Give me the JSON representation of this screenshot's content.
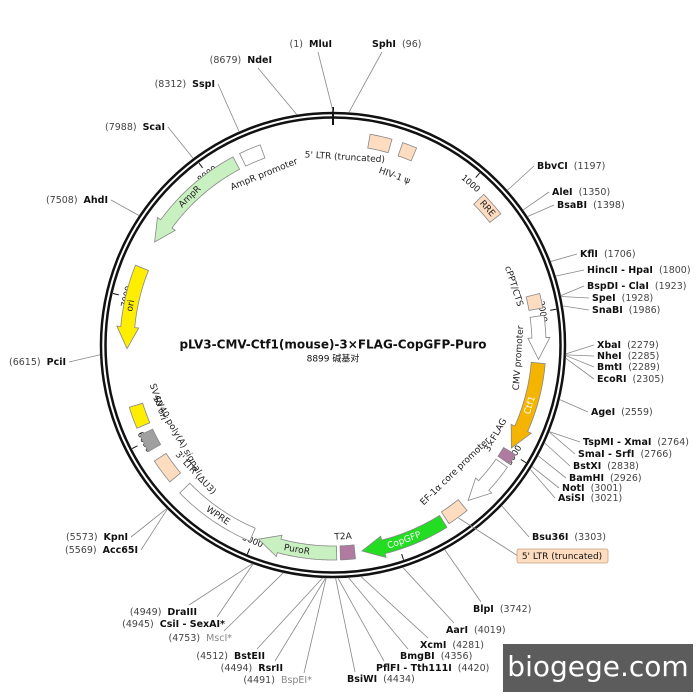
{
  "title": "pLV3-CMV-Ctf1(mouse)-3×FLAG-CopGFP-Puro",
  "subtitle": "8899 碱基对",
  "scale_ticks": [
    "1000",
    "2000",
    "3000",
    "4000",
    "5000",
    "6000",
    "7000",
    "8000"
  ],
  "features": [
    {
      "label": "5' LTR (truncated)"
    },
    {
      "label": "HIV-1 ψ"
    },
    {
      "label": "RRE"
    },
    {
      "label": "cPPT/CTS"
    },
    {
      "label": "CMV promoter"
    },
    {
      "label": "Ctf1"
    },
    {
      "label": "3×FLAG"
    },
    {
      "label": "EF-1α core promoter"
    },
    {
      "label": "5' LTR (truncated)"
    },
    {
      "label": "CopGFP"
    },
    {
      "label": "T2A"
    },
    {
      "label": "PuroR"
    },
    {
      "label": "WPRE"
    },
    {
      "label": "3' LTR (ΔU3)"
    },
    {
      "label": "SV40 poly(A) signal"
    },
    {
      "label": "SV40 ori"
    },
    {
      "label": "ori"
    },
    {
      "label": "AmpR"
    },
    {
      "label": "AmpR promoter"
    }
  ],
  "enzymes": [
    {
      "name": "SphI",
      "site": "(96)"
    },
    {
      "name": "BbvCI",
      "site": "(1197)"
    },
    {
      "name": "AleI",
      "site": "(1350)"
    },
    {
      "name": "BsaBI",
      "site": "(1398)"
    },
    {
      "name": "KflI",
      "site": "(1706)"
    },
    {
      "name": "HincII - HpaI",
      "site": "(1800)"
    },
    {
      "name": "BspDI - ClaI",
      "site": "(1923)"
    },
    {
      "name": "SpeI",
      "site": "(1928)"
    },
    {
      "name": "SnaBI",
      "site": "(1986)"
    },
    {
      "name": "XbaI",
      "site": "(2279)"
    },
    {
      "name": "NheI",
      "site": "(2285)"
    },
    {
      "name": "BmtI",
      "site": "(2289)"
    },
    {
      "name": "EcoRI",
      "site": "(2305)"
    },
    {
      "name": "AgeI",
      "site": "(2559)"
    },
    {
      "name": "TspMI - XmaI",
      "site": "(2764)"
    },
    {
      "name": "SmaI - SrfI",
      "site": "(2766)"
    },
    {
      "name": "BstXI",
      "site": "(2838)"
    },
    {
      "name": "BamHI",
      "site": "(2926)"
    },
    {
      "name": "NotI",
      "site": "(3001)"
    },
    {
      "name": "AsiSI",
      "site": "(3021)"
    },
    {
      "name": "Bsu36I",
      "site": "(3303)"
    },
    {
      "name": "BlpI",
      "site": "(3742)"
    },
    {
      "name": "AarI",
      "site": "(4019)"
    },
    {
      "name": "XcmI",
      "site": "(4281)"
    },
    {
      "name": "BmgBI",
      "site": "(4356)"
    },
    {
      "name": "PflFI - Tth111I",
      "site": "(4420)"
    },
    {
      "name": "BsiWI",
      "site": "(4434)"
    },
    {
      "name": "MluI",
      "site": "(1)"
    },
    {
      "name": "NdeI",
      "site": "(8679)"
    },
    {
      "name": "SspI",
      "site": "(8312)"
    },
    {
      "name": "ScaI",
      "site": "(7988)"
    },
    {
      "name": "AhdI",
      "site": "(7508)"
    },
    {
      "name": "PciI",
      "site": "(6615)"
    },
    {
      "name": "KpnI",
      "site": "(5573)"
    },
    {
      "name": "Acc65I",
      "site": "(5569)"
    },
    {
      "name": "DraIII",
      "site": "(4949)"
    },
    {
      "name": "CsiI - SexAI*",
      "site": "(4945)"
    },
    {
      "name": "MscI*",
      "site": "(4753)"
    },
    {
      "name": "BstEII",
      "site": "(4512)"
    },
    {
      "name": "RsrII",
      "site": "(4494)"
    },
    {
      "name": "BspEI*",
      "site": "(4491)"
    }
  ],
  "watermark": "biogege.com"
}
